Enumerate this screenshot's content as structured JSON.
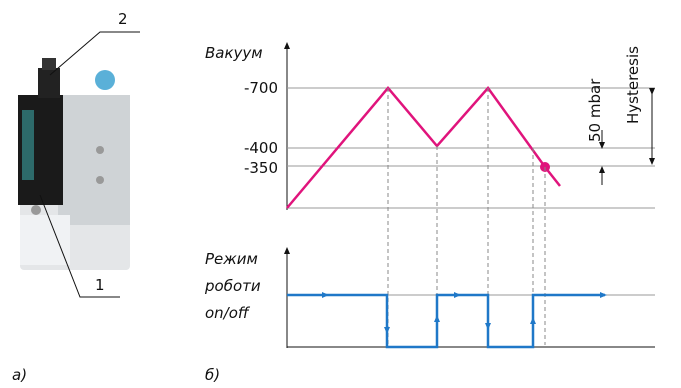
{
  "figure_a": {
    "label": "а)",
    "callouts": [
      "1",
      "2"
    ]
  },
  "figure_b": {
    "label": "б)",
    "vacuum_axis": {
      "title": "Вакуум",
      "ticks": [
        "-700",
        "-400",
        "-350"
      ]
    },
    "mode_axis": {
      "title_lines": [
        "Режим",
        "роботи",
        "on/off"
      ]
    },
    "annotations": {
      "switch_gap": "50 mbar",
      "hysteresis": "Hysteresis"
    }
  }
}
